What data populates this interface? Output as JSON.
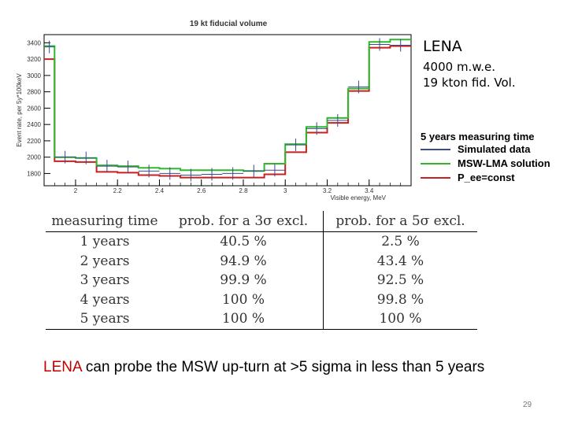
{
  "chart_data": {
    "type": "line",
    "title": "19 kt fiducial volume",
    "xlabel": "Visible energy, MeV",
    "ylabel": "Event rate, per 5y*100keV",
    "xlim": [
      1.85,
      3.6
    ],
    "ylim": [
      1650,
      3500
    ],
    "x_ticks": [
      "2",
      "2.2",
      "2.4",
      "2.6",
      "2.8",
      "3",
      "3.2",
      "3.4"
    ],
    "y_ticks": [
      "1800",
      "2000",
      "2200",
      "2400",
      "2600",
      "2800",
      "3000",
      "3200",
      "3400"
    ],
    "bin_edges": [
      1.85,
      1.9,
      2.0,
      2.1,
      2.2,
      2.3,
      2.4,
      2.5,
      2.6,
      2.7,
      2.8,
      2.9,
      3.0,
      3.1,
      3.2,
      3.3,
      3.4,
      3.5,
      3.6
    ],
    "series": [
      {
        "name": "Simulated data",
        "color": "#3b4a8a",
        "values": [
          3350,
          2000,
          1990,
          1890,
          1880,
          1830,
          1800,
          1780,
          1790,
          1800,
          1830,
          1840,
          2150,
          2350,
          2450,
          2860,
          3380,
          3370
        ]
      },
      {
        "name": "MSW-LMA solution",
        "color": "#2db82d",
        "values": [
          3360,
          2000,
          1990,
          1900,
          1890,
          1870,
          1860,
          1840,
          1840,
          1840,
          1830,
          1920,
          2160,
          2370,
          2480,
          2840,
          3410,
          3440
        ]
      },
      {
        "name": "P_ee=const",
        "color": "#c82020",
        "values": [
          3200,
          1950,
          1940,
          1820,
          1810,
          1780,
          1770,
          1750,
          1750,
          1750,
          1750,
          1790,
          2060,
          2300,
          2420,
          2810,
          3340,
          3360
        ]
      }
    ],
    "legend_title": "5 years measuring time",
    "legend_position": "right",
    "grid": false
  },
  "side": {
    "title": "LENA",
    "line1": "4000 m.w.e.",
    "line2": "19 kton fid. Vol."
  },
  "table": {
    "headers": [
      "measuring time",
      "prob. for a 3σ excl.",
      "prob. for a 5σ excl."
    ],
    "rows": [
      [
        "1 years",
        "40.5 %",
        "2.5 %"
      ],
      [
        "2 years",
        "94.9 %",
        "43.4 %"
      ],
      [
        "3 years",
        "99.9 %",
        "92.5 %"
      ],
      [
        "4 years",
        "100 %",
        "99.8 %"
      ],
      [
        "5 years",
        "100 %",
        "100 %"
      ]
    ]
  },
  "caption": {
    "highlight": "LENA",
    "rest": " can probe the MSW up-turn at >5 sigma in less than 5 years"
  },
  "page_number": "29"
}
